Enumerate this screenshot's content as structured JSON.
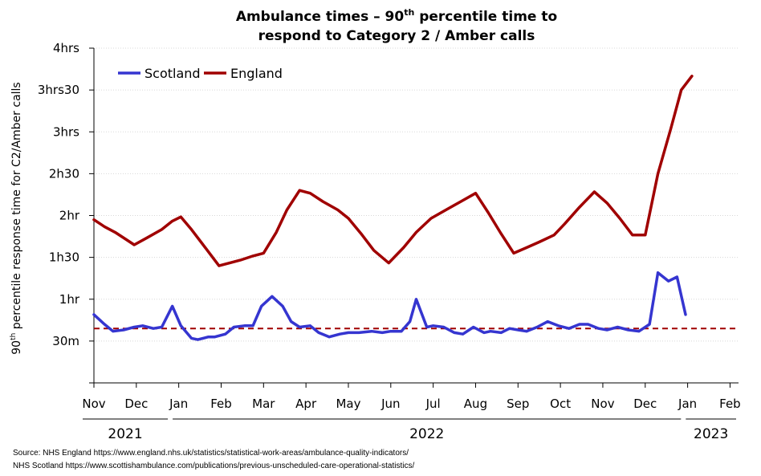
{
  "chart_data": {
    "type": "line",
    "title_line1": "Ambulance times – 90",
    "title_sup": "th",
    "title_line1_end": " percentile time to",
    "title_line2": "respond to Category 2 / Amber calls",
    "ylabel_prefix": "90",
    "ylabel_sup": "th",
    "ylabel_rest": " percentile response time for C2/Amber calls",
    "ylim": [
      0,
      240
    ],
    "y_ticks": [
      {
        "value": 30,
        "label": "30m"
      },
      {
        "value": 60,
        "label": "1hr"
      },
      {
        "value": 90,
        "label": "1h30"
      },
      {
        "value": 120,
        "label": "2hr"
      },
      {
        "value": 150,
        "label": "2h30"
      },
      {
        "value": 180,
        "label": "3hrs"
      },
      {
        "value": 210,
        "label": "3hrs30"
      },
      {
        "value": 240,
        "label": "4hrs"
      }
    ],
    "xlim": [
      0,
      15.2
    ],
    "x_ticks": [
      {
        "value": 0,
        "label": "Nov"
      },
      {
        "value": 1,
        "label": "Dec"
      },
      {
        "value": 2,
        "label": "Jan"
      },
      {
        "value": 3,
        "label": "Feb"
      },
      {
        "value": 4,
        "label": "Mar"
      },
      {
        "value": 5,
        "label": "Apr"
      },
      {
        "value": 6,
        "label": "May"
      },
      {
        "value": 7,
        "label": "Jun"
      },
      {
        "value": 8,
        "label": "Jul"
      },
      {
        "value": 9,
        "label": "Aug"
      },
      {
        "value": 10,
        "label": "Sep"
      },
      {
        "value": 11,
        "label": "Oct"
      },
      {
        "value": 12,
        "label": "Nov"
      },
      {
        "value": 13,
        "label": "Dec"
      },
      {
        "value": 14,
        "label": "Jan"
      },
      {
        "value": 15,
        "label": "Feb"
      }
    ],
    "years": [
      {
        "label": "2021",
        "start": 0,
        "end": 1.8
      },
      {
        "label": "2022",
        "start": 1.8,
        "end": 13.9
      },
      {
        "label": "2023",
        "start": 13.9,
        "end": 15.2
      }
    ],
    "grid": true,
    "legend_position": "top-left",
    "reference_line": {
      "value": 39,
      "color": "#a00000"
    },
    "series": [
      {
        "name": "Scotland",
        "color": "#3535d0",
        "x": [
          0,
          0.25,
          0.45,
          0.7,
          0.95,
          1.15,
          1.4,
          1.6,
          1.85,
          2.05,
          2.3,
          2.45,
          2.7,
          2.85,
          3.1,
          3.3,
          3.55,
          3.75,
          3.95,
          4.2,
          4.45,
          4.65,
          4.85,
          5.1,
          5.3,
          5.55,
          5.8,
          6.0,
          6.25,
          6.55,
          6.8,
          7.0,
          7.25,
          7.45,
          7.6,
          7.85,
          8.0,
          8.25,
          8.5,
          8.7,
          8.95,
          9.2,
          9.35,
          9.6,
          9.8,
          10.0,
          10.2,
          10.45,
          10.7,
          10.95,
          11.2,
          11.45,
          11.65,
          11.9,
          12.1,
          12.35,
          12.6,
          12.85,
          13.1,
          13.3,
          13.55,
          13.75,
          13.95
        ],
        "values": [
          49,
          42,
          37,
          38,
          40,
          41,
          39,
          40,
          55,
          41,
          32,
          31,
          33,
          33,
          35,
          40,
          41,
          41,
          55,
          62,
          55,
          44,
          40,
          41,
          36,
          33,
          35,
          36,
          36,
          37,
          36,
          37,
          37,
          44,
          60,
          40,
          41,
          40,
          36,
          35,
          40,
          36,
          37,
          36,
          39,
          38,
          37,
          40,
          44,
          41,
          39,
          42,
          42,
          39,
          38,
          40,
          38,
          37,
          42,
          79,
          73,
          76,
          49
        ]
      },
      {
        "name": "England",
        "color": "#a00000",
        "x": [
          0,
          0.25,
          0.5,
          0.75,
          0.95,
          1.25,
          1.6,
          1.85,
          2.05,
          2.3,
          2.65,
          2.95,
          3.2,
          3.45,
          3.75,
          4.0,
          4.3,
          4.55,
          4.85,
          5.1,
          5.4,
          5.75,
          6.0,
          6.3,
          6.6,
          6.95,
          7.3,
          7.6,
          7.95,
          8.3,
          8.65,
          9.0,
          9.3,
          9.6,
          9.9,
          10.2,
          10.5,
          10.85,
          11.1,
          11.45,
          11.8,
          12.1,
          12.4,
          12.7,
          13.0,
          13.3,
          13.6,
          13.85,
          14.1
        ],
        "values": [
          117,
          112,
          108,
          103,
          99,
          104,
          110,
          116,
          119,
          110,
          96,
          84,
          86,
          88,
          91,
          93,
          108,
          124,
          138,
          136,
          130,
          124,
          118,
          107,
          95,
          86,
          97,
          108,
          118,
          124,
          130,
          136,
          122,
          107,
          93,
          97,
          101,
          106,
          114,
          126,
          137,
          129,
          118,
          106,
          106,
          150,
          182,
          210,
          220
        ]
      }
    ]
  },
  "source": {
    "line1": "Source: NHS England  https://www.england.nhs.uk/statistics/statistical-work-areas/ambulance-quality-indicators/",
    "line2": "NHS Scotland https://www.scottishambulance.com/publications/previous-unscheduled-care-operational-statistics/"
  }
}
